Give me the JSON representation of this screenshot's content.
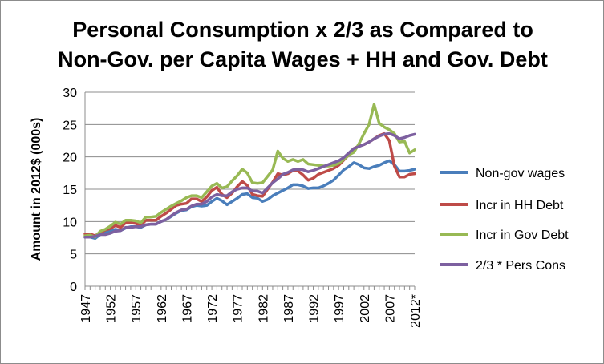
{
  "chart_data": {
    "type": "line",
    "title_lines": [
      "Personal Consumption x 2/3 as Compared to",
      "Non-Gov. per Capita Wages + HH and Gov. Debt"
    ],
    "xlabel": "",
    "ylabel": "Amount in 2012$ (000s)",
    "ylim": [
      0,
      30
    ],
    "yticks": [
      0,
      5,
      10,
      15,
      20,
      25,
      30
    ],
    "x": [
      1947,
      1948,
      1949,
      1950,
      1951,
      1952,
      1953,
      1954,
      1955,
      1956,
      1957,
      1958,
      1959,
      1960,
      1961,
      1962,
      1963,
      1964,
      1965,
      1966,
      1967,
      1968,
      1969,
      1970,
      1971,
      1972,
      1973,
      1974,
      1975,
      1976,
      1977,
      1978,
      1979,
      1980,
      1981,
      1982,
      1983,
      1984,
      1985,
      1986,
      1987,
      1988,
      1989,
      1990,
      1991,
      1992,
      1993,
      1994,
      1995,
      1996,
      1997,
      1998,
      1999,
      2000,
      2001,
      2002,
      2003,
      2004,
      2005,
      2006,
      2007,
      2008,
      2009,
      2010,
      2011,
      2012
    ],
    "xtick_labels": [
      "1947",
      "1952",
      "1957",
      "1962",
      "1967",
      "1972",
      "1977",
      "1982",
      "1987",
      "1992",
      "1997",
      "2002",
      "2007",
      "2012*"
    ],
    "legend_position": "right",
    "grid": "horizontal",
    "series": [
      {
        "name": "Non-gov wages",
        "color": "#4a7ebb",
        "values": [
          7.6,
          7.6,
          7.4,
          8.0,
          8.3,
          8.5,
          8.8,
          8.6,
          9.0,
          9.2,
          9.2,
          9.1,
          9.5,
          9.6,
          9.6,
          10.0,
          10.3,
          10.8,
          11.3,
          11.7,
          11.8,
          12.3,
          12.5,
          12.4,
          12.5,
          13.1,
          13.6,
          13.2,
          12.6,
          13.1,
          13.6,
          14.2,
          14.3,
          13.7,
          13.6,
          13.1,
          13.4,
          14.0,
          14.4,
          14.8,
          15.2,
          15.7,
          15.7,
          15.5,
          15.1,
          15.2,
          15.2,
          15.5,
          15.9,
          16.4,
          17.2,
          18.0,
          18.5,
          19.1,
          18.8,
          18.3,
          18.2,
          18.5,
          18.7,
          19.1,
          19.4,
          18.8,
          17.8,
          17.8,
          17.9,
          18.1
        ]
      },
      {
        "name": "Incr in HH Debt",
        "color": "#be4b48",
        "values": [
          8.1,
          8.1,
          7.8,
          8.3,
          8.7,
          8.9,
          9.4,
          9.1,
          9.8,
          9.8,
          9.7,
          9.4,
          10.2,
          10.2,
          10.2,
          10.8,
          11.3,
          11.9,
          12.5,
          12.7,
          12.8,
          13.5,
          13.5,
          13.1,
          13.8,
          14.8,
          15.3,
          14.2,
          13.7,
          14.4,
          15.4,
          16.2,
          15.6,
          14.2,
          14.0,
          13.9,
          15.0,
          16.1,
          17.4,
          17.2,
          17.4,
          17.9,
          17.8,
          17.2,
          16.4,
          16.7,
          17.3,
          17.6,
          17.9,
          18.2,
          18.7,
          19.5,
          20.3,
          21.3,
          21.7,
          21.9,
          22.3,
          22.8,
          23.3,
          23.6,
          22.5,
          18.6,
          16.9,
          16.9,
          17.3,
          17.4
        ]
      },
      {
        "name": "Incr in Gov Debt",
        "color": "#98b954",
        "values": [
          7.8,
          7.9,
          7.6,
          8.5,
          8.8,
          9.3,
          9.9,
          9.6,
          10.2,
          10.2,
          10.1,
          9.8,
          10.7,
          10.7,
          10.8,
          11.4,
          11.9,
          12.4,
          12.8,
          13.2,
          13.7,
          14.0,
          14.0,
          13.7,
          14.6,
          15.5,
          15.9,
          15.2,
          15.4,
          16.3,
          17.1,
          18.1,
          17.5,
          16.0,
          15.9,
          16.0,
          17.0,
          18.0,
          20.9,
          19.8,
          19.3,
          19.6,
          19.3,
          19.6,
          18.9,
          18.8,
          18.7,
          18.6,
          18.6,
          18.7,
          19.0,
          19.6,
          20.3,
          20.7,
          22.0,
          23.6,
          25.0,
          28.1,
          25.2,
          24.6,
          24.2,
          23.6,
          22.3,
          22.4,
          20.6,
          21.1
        ]
      },
      {
        "name": "2/3 * Pers Cons",
        "color": "#7d60a0",
        "values": [
          7.6,
          7.6,
          7.7,
          8.0,
          8.0,
          8.2,
          8.5,
          8.6,
          9.1,
          9.1,
          9.2,
          9.2,
          9.5,
          9.6,
          9.6,
          10.0,
          10.3,
          10.9,
          11.4,
          11.8,
          11.9,
          12.4,
          12.7,
          12.7,
          13.1,
          13.8,
          14.2,
          14.0,
          14.0,
          14.6,
          15.0,
          15.2,
          15.2,
          14.7,
          14.7,
          14.4,
          15.2,
          16.0,
          16.6,
          17.3,
          17.6,
          18.0,
          18.1,
          18.0,
          17.7,
          17.9,
          18.2,
          18.5,
          18.8,
          19.1,
          19.4,
          19.9,
          20.6,
          21.3,
          21.6,
          21.9,
          22.3,
          22.8,
          23.2,
          23.5,
          23.6,
          23.3,
          22.8,
          23.0,
          23.3,
          23.5
        ]
      }
    ]
  }
}
